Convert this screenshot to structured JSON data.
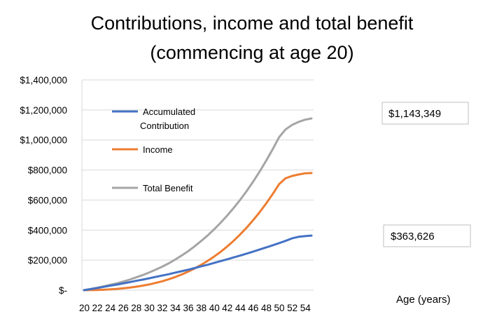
{
  "chart_data": {
    "type": "line",
    "title_line1": "Contributions, income and total benefit",
    "title_line2": "(commencing at age 20)",
    "xlabel": "Age (years)",
    "ylabel": "",
    "ylim": [
      0,
      1400000
    ],
    "yticks": [
      0,
      200000,
      400000,
      600000,
      800000,
      1000000,
      1200000,
      1400000
    ],
    "ytick_labels": [
      "$-",
      "$200,000",
      "$400,000",
      "$600,000",
      "$800,000",
      "$1,000,000",
      "$1,200,000",
      "$1,400,000"
    ],
    "x": [
      20,
      21,
      22,
      23,
      24,
      25,
      26,
      27,
      28,
      29,
      30,
      31,
      32,
      33,
      34,
      35,
      36,
      37,
      38,
      39,
      40,
      41,
      42,
      43,
      44,
      45,
      46,
      47,
      48,
      49,
      50,
      51,
      52,
      53,
      54,
      55
    ],
    "xtick_labels": [
      "20",
      "22",
      "24",
      "26",
      "28",
      "30",
      "32",
      "34",
      "36",
      "38",
      "40",
      "42",
      "44",
      "46",
      "48",
      "50",
      "52",
      "54"
    ],
    "grid": true,
    "legend_position": "top-left",
    "series": [
      {
        "name": "Accumulated Contribution",
        "name_line1": "Accumulated",
        "name_line2": "Contribution",
        "color": "#4472C4",
        "values": [
          0,
          7000,
          14000,
          22000,
          30000,
          37000,
          45000,
          53000,
          62000,
          70000,
          79000,
          88000,
          97000,
          106000,
          116000,
          126000,
          136000,
          147000,
          158000,
          169000,
          181000,
          193000,
          205000,
          218000,
          230000,
          243000,
          256000,
          270000,
          284000,
          298000,
          313000,
          328000,
          345000,
          355000,
          360000,
          363626
        ]
      },
      {
        "name": "Income",
        "color": "#ED7D31",
        "values": [
          0,
          500,
          1500,
          3000,
          5000,
          8000,
          12000,
          17000,
          23000,
          30000,
          38000,
          48000,
          59000,
          72000,
          87000,
          104000,
          123000,
          144000,
          168000,
          194000,
          223000,
          255000,
          290000,
          328000,
          370000,
          415000,
          465000,
          518000,
          576000,
          638000,
          705000,
          745000,
          760000,
          770000,
          778000,
          780000
        ]
      },
      {
        "name": "Total Benefit",
        "color": "#A5A5A5",
        "values": [
          0,
          8000,
          16000,
          25000,
          35000,
          45000,
          57000,
          70000,
          85000,
          100000,
          117000,
          136000,
          156000,
          178000,
          203000,
          230000,
          259000,
          291000,
          326000,
          363000,
          404000,
          448000,
          495000,
          546000,
          600000,
          658000,
          721000,
          788000,
          860000,
          936000,
          1018000,
          1070000,
          1100000,
          1120000,
          1135000,
          1143349
        ]
      }
    ],
    "callouts": {
      "total_benefit": "$1,143,349",
      "accumulated_contribution": "$363,626"
    }
  }
}
